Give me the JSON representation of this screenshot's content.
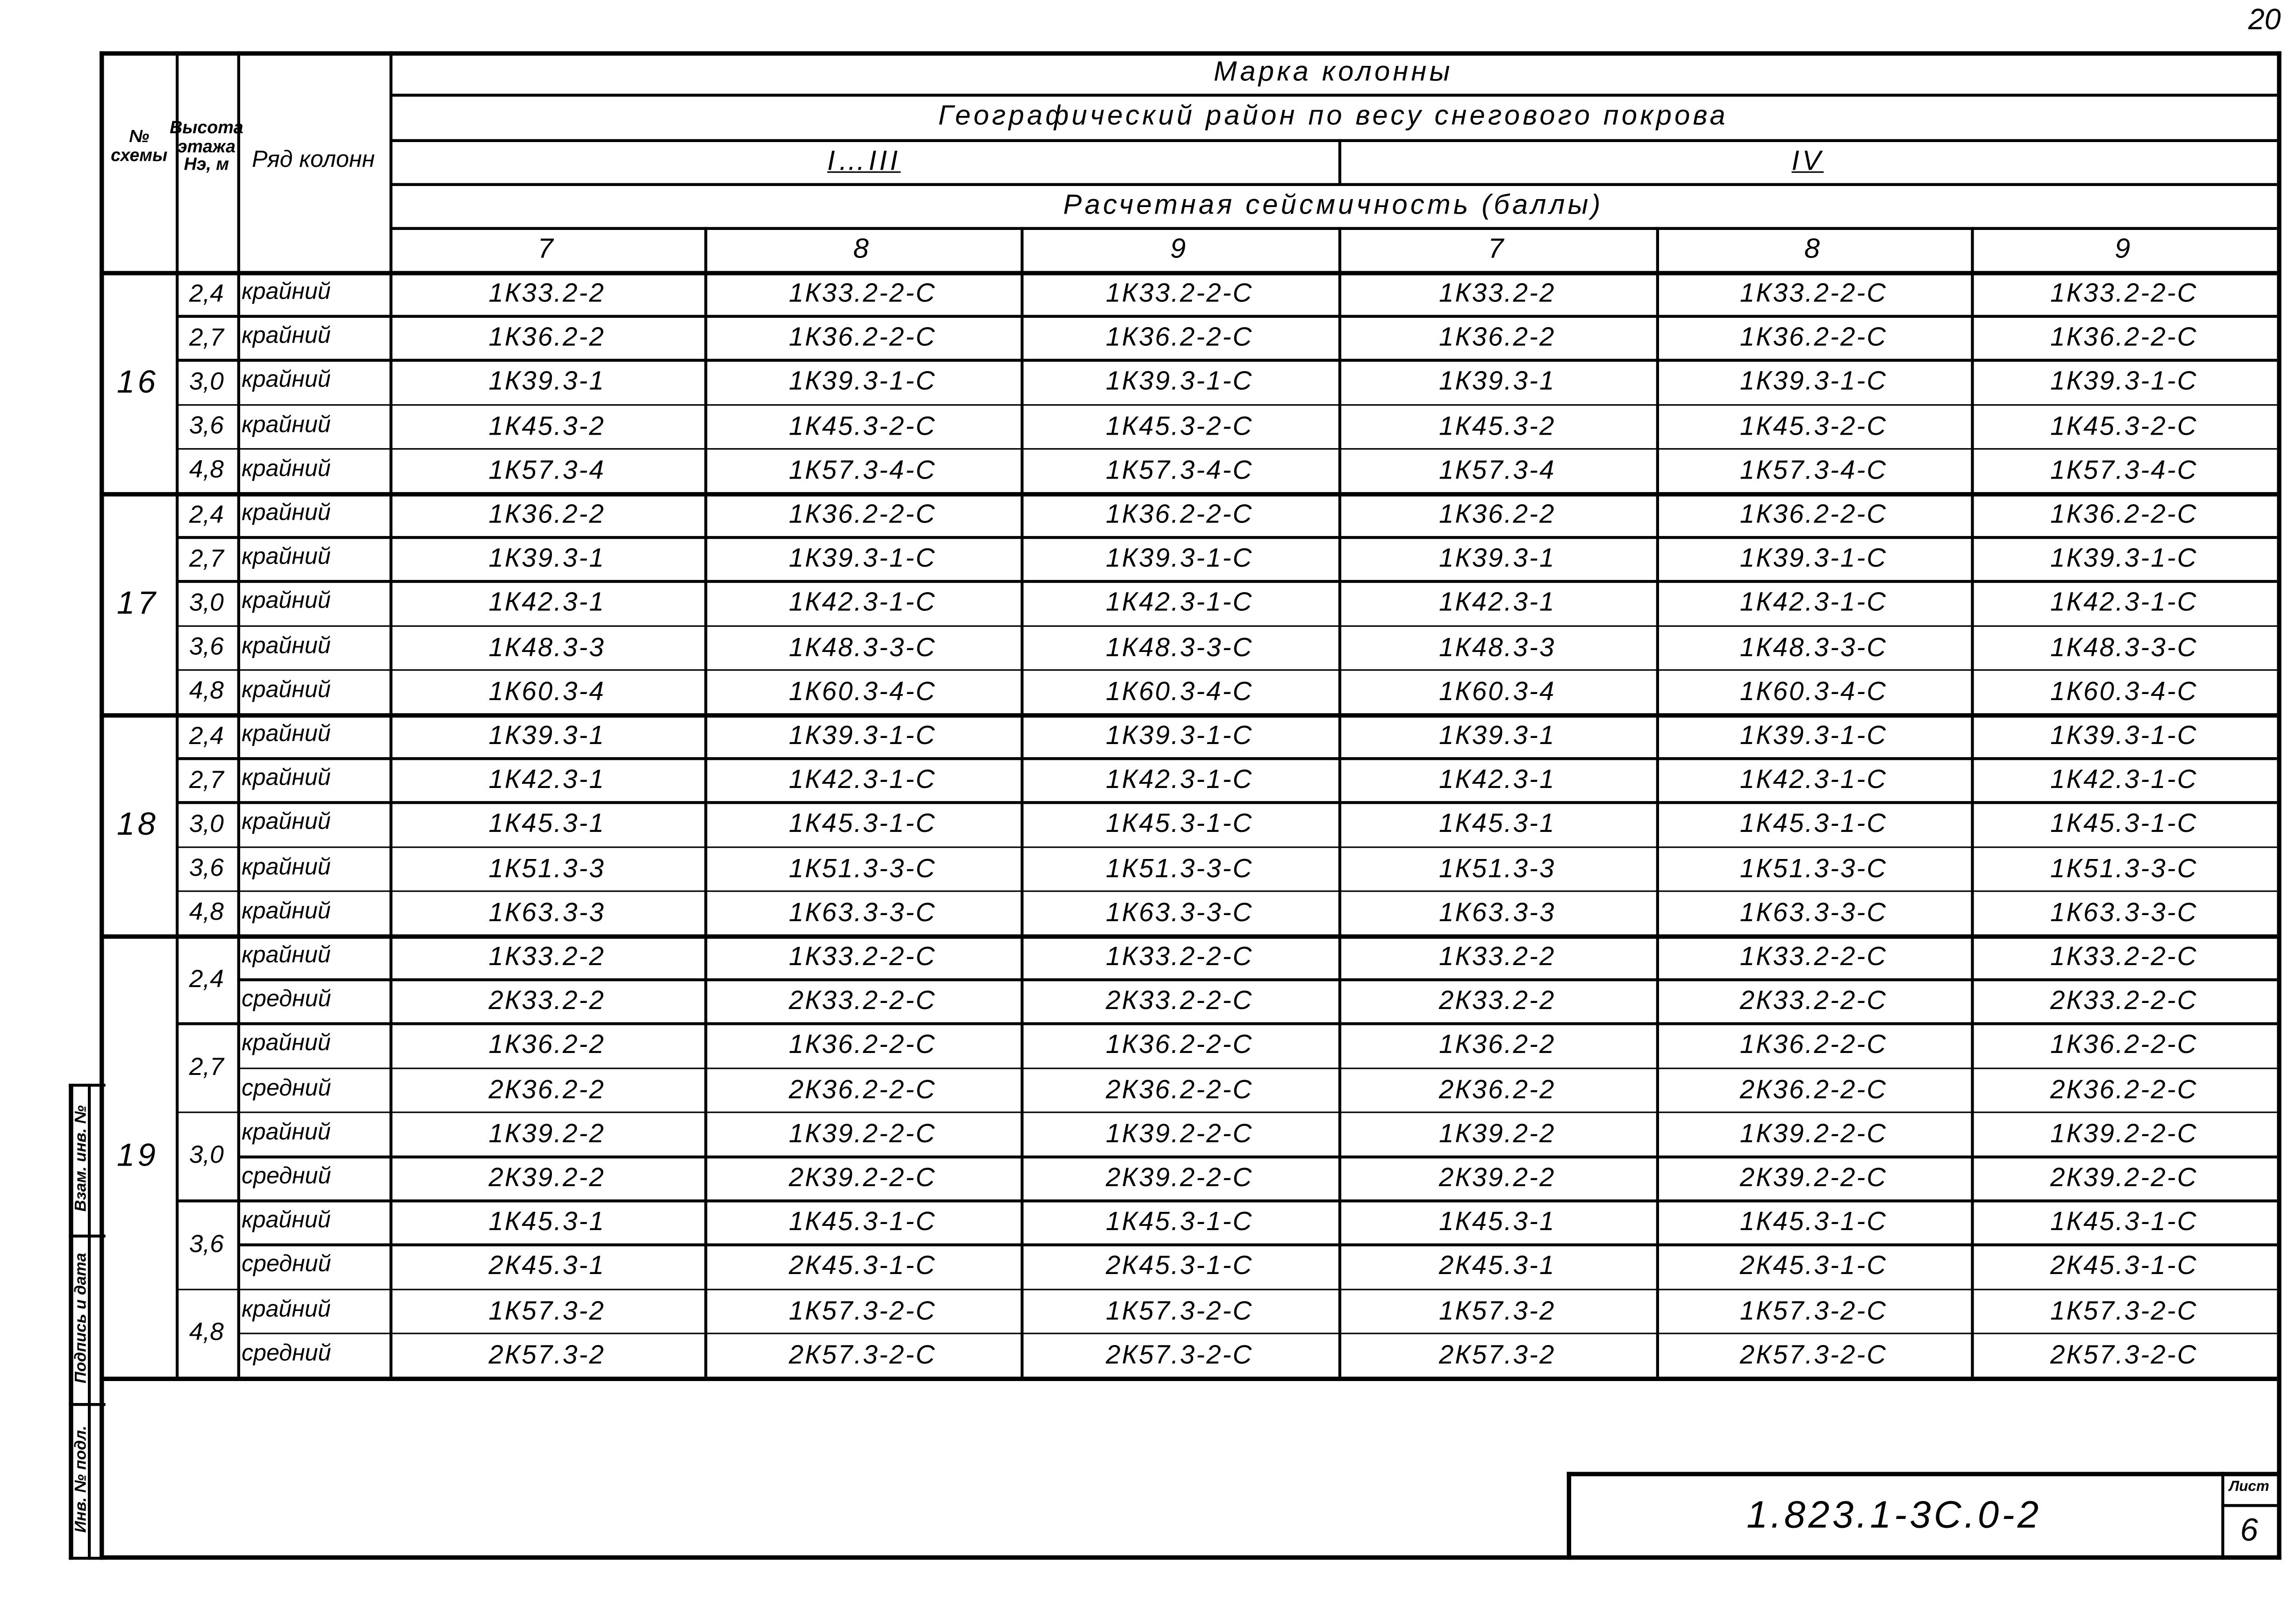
{
  "page_number": "20",
  "header": {
    "col_scheme": "№ схемы",
    "col_height": "Высота этажа Нэ, м",
    "col_row": "Ряд колонн",
    "title": "Марка колонны",
    "region_title": "Географический район по весу снегового покрова",
    "region_1": "I…III",
    "region_2": "IV",
    "seismic_title": "Расчетная сейсмичность (баллы)",
    "seismic_levels": [
      "7",
      "8",
      "9",
      "7",
      "8",
      "9"
    ]
  },
  "groups": [
    {
      "scheme": "16",
      "heights": [
        {
          "h": "2,4",
          "rows": [
            {
              "type": "крайний",
              "marks": [
                "1К33.2-2",
                "1К33.2-2-С",
                "1К33.2-2-С",
                "1К33.2-2",
                "1К33.2-2-С",
                "1К33.2-2-С"
              ]
            }
          ]
        },
        {
          "h": "2,7",
          "rows": [
            {
              "type": "крайний",
              "marks": [
                "1К36.2-2",
                "1К36.2-2-С",
                "1К36.2-2-С",
                "1К36.2-2",
                "1К36.2-2-С",
                "1К36.2-2-С"
              ]
            }
          ]
        },
        {
          "h": "3,0",
          "rows": [
            {
              "type": "крайний",
              "marks": [
                "1К39.3-1",
                "1К39.3-1-С",
                "1К39.3-1-С",
                "1К39.3-1",
                "1К39.3-1-С",
                "1К39.3-1-С"
              ]
            }
          ]
        },
        {
          "h": "3,6",
          "rows": [
            {
              "type": "крайний",
              "marks": [
                "1К45.3-2",
                "1К45.3-2-С",
                "1К45.3-2-С",
                "1К45.3-2",
                "1К45.3-2-С",
                "1К45.3-2-С"
              ]
            }
          ]
        },
        {
          "h": "4,8",
          "rows": [
            {
              "type": "крайний",
              "marks": [
                "1К57.3-4",
                "1К57.3-4-С",
                "1К57.3-4-С",
                "1К57.3-4",
                "1К57.3-4-С",
                "1К57.3-4-С"
              ]
            }
          ]
        }
      ]
    },
    {
      "scheme": "17",
      "heights": [
        {
          "h": "2,4",
          "rows": [
            {
              "type": "крайний",
              "marks": [
                "1К36.2-2",
                "1К36.2-2-С",
                "1К36.2-2-С",
                "1К36.2-2",
                "1К36.2-2-С",
                "1К36.2-2-С"
              ]
            }
          ]
        },
        {
          "h": "2,7",
          "rows": [
            {
              "type": "крайний",
              "marks": [
                "1К39.3-1",
                "1К39.3-1-С",
                "1К39.3-1-С",
                "1К39.3-1",
                "1К39.3-1-С",
                "1К39.3-1-С"
              ]
            }
          ]
        },
        {
          "h": "3,0",
          "rows": [
            {
              "type": "крайний",
              "marks": [
                "1К42.3-1",
                "1К42.3-1-С",
                "1К42.3-1-С",
                "1К42.3-1",
                "1К42.3-1-С",
                "1К42.3-1-С"
              ]
            }
          ]
        },
        {
          "h": "3,6",
          "rows": [
            {
              "type": "крайний",
              "marks": [
                "1К48.3-3",
                "1К48.3-3-С",
                "1К48.3-3-С",
                "1К48.3-3",
                "1К48.3-3-С",
                "1К48.3-3-С"
              ]
            }
          ]
        },
        {
          "h": "4,8",
          "rows": [
            {
              "type": "крайний",
              "marks": [
                "1К60.3-4",
                "1К60.3-4-С",
                "1К60.3-4-С",
                "1К60.3-4",
                "1К60.3-4-С",
                "1К60.3-4-С"
              ]
            }
          ]
        }
      ]
    },
    {
      "scheme": "18",
      "heights": [
        {
          "h": "2,4",
          "rows": [
            {
              "type": "крайний",
              "marks": [
                "1К39.3-1",
                "1К39.3-1-С",
                "1К39.3-1-С",
                "1К39.3-1",
                "1К39.3-1-С",
                "1К39.3-1-С"
              ]
            }
          ]
        },
        {
          "h": "2,7",
          "rows": [
            {
              "type": "крайний",
              "marks": [
                "1К42.3-1",
                "1К42.3-1-С",
                "1К42.3-1-С",
                "1К42.3-1",
                "1К42.3-1-С",
                "1К42.3-1-С"
              ]
            }
          ]
        },
        {
          "h": "3,0",
          "rows": [
            {
              "type": "крайний",
              "marks": [
                "1К45.3-1",
                "1К45.3-1-С",
                "1К45.3-1-С",
                "1К45.3-1",
                "1К45.3-1-С",
                "1К45.3-1-С"
              ]
            }
          ]
        },
        {
          "h": "3,6",
          "rows": [
            {
              "type": "крайний",
              "marks": [
                "1К51.3-3",
                "1К51.3-3-С",
                "1К51.3-3-С",
                "1К51.3-3",
                "1К51.3-3-С",
                "1К51.3-3-С"
              ]
            }
          ]
        },
        {
          "h": "4,8",
          "rows": [
            {
              "type": "крайний",
              "marks": [
                "1К63.3-3",
                "1К63.3-3-С",
                "1К63.3-3-С",
                "1К63.3-3",
                "1К63.3-3-С",
                "1К63.3-3-С"
              ]
            }
          ]
        }
      ]
    },
    {
      "scheme": "19",
      "heights": [
        {
          "h": "2,4",
          "rows": [
            {
              "type": "крайний",
              "marks": [
                "1К33.2-2",
                "1К33.2-2-С",
                "1К33.2-2-С",
                "1К33.2-2",
                "1К33.2-2-С",
                "1К33.2-2-С"
              ]
            },
            {
              "type": "средний",
              "marks": [
                "2К33.2-2",
                "2К33.2-2-С",
                "2К33.2-2-С",
                "2К33.2-2",
                "2К33.2-2-С",
                "2К33.2-2-С"
              ]
            }
          ]
        },
        {
          "h": "2,7",
          "rows": [
            {
              "type": "крайний",
              "marks": [
                "1К36.2-2",
                "1К36.2-2-С",
                "1К36.2-2-С",
                "1К36.2-2",
                "1К36.2-2-С",
                "1К36.2-2-С"
              ]
            },
            {
              "type": "средний",
              "marks": [
                "2К36.2-2",
                "2К36.2-2-С",
                "2К36.2-2-С",
                "2К36.2-2",
                "2К36.2-2-С",
                "2К36.2-2-С"
              ]
            }
          ]
        },
        {
          "h": "3,0",
          "rows": [
            {
              "type": "крайний",
              "marks": [
                "1К39.2-2",
                "1К39.2-2-С",
                "1К39.2-2-С",
                "1К39.2-2",
                "1К39.2-2-С",
                "1К39.2-2-С"
              ]
            },
            {
              "type": "средний",
              "marks": [
                "2К39.2-2",
                "2К39.2-2-С",
                "2К39.2-2-С",
                "2К39.2-2",
                "2К39.2-2-С",
                "2К39.2-2-С"
              ]
            }
          ]
        },
        {
          "h": "3,6",
          "rows": [
            {
              "type": "крайний",
              "marks": [
                "1К45.3-1",
                "1К45.3-1-С",
                "1К45.3-1-С",
                "1К45.3-1",
                "1К45.3-1-С",
                "1К45.3-1-С"
              ]
            },
            {
              "type": "средний",
              "marks": [
                "2К45.3-1",
                "2К45.3-1-С",
                "2К45.3-1-С",
                "2К45.3-1",
                "2К45.3-1-С",
                "2К45.3-1-С"
              ]
            }
          ]
        },
        {
          "h": "4,8",
          "rows": [
            {
              "type": "крайний",
              "marks": [
                "1К57.3-2",
                "1К57.3-2-С",
                "1К57.3-2-С",
                "1К57.3-2",
                "1К57.3-2-С",
                "1К57.3-2-С"
              ]
            },
            {
              "type": "средний",
              "marks": [
                "2К57.3-2",
                "2К57.3-2-С",
                "2К57.3-2-С",
                "2К57.3-2",
                "2К57.3-2-С",
                "2К57.3-2-С"
              ]
            }
          ]
        }
      ]
    }
  ],
  "title_block": {
    "code": "1.823.1-3С.0-2",
    "sheet_label": "Лист",
    "sheet_number": "6"
  },
  "side_stamp": [
    "Инв. № подл.",
    "Подпись и дата",
    "Взам. инв. №"
  ]
}
